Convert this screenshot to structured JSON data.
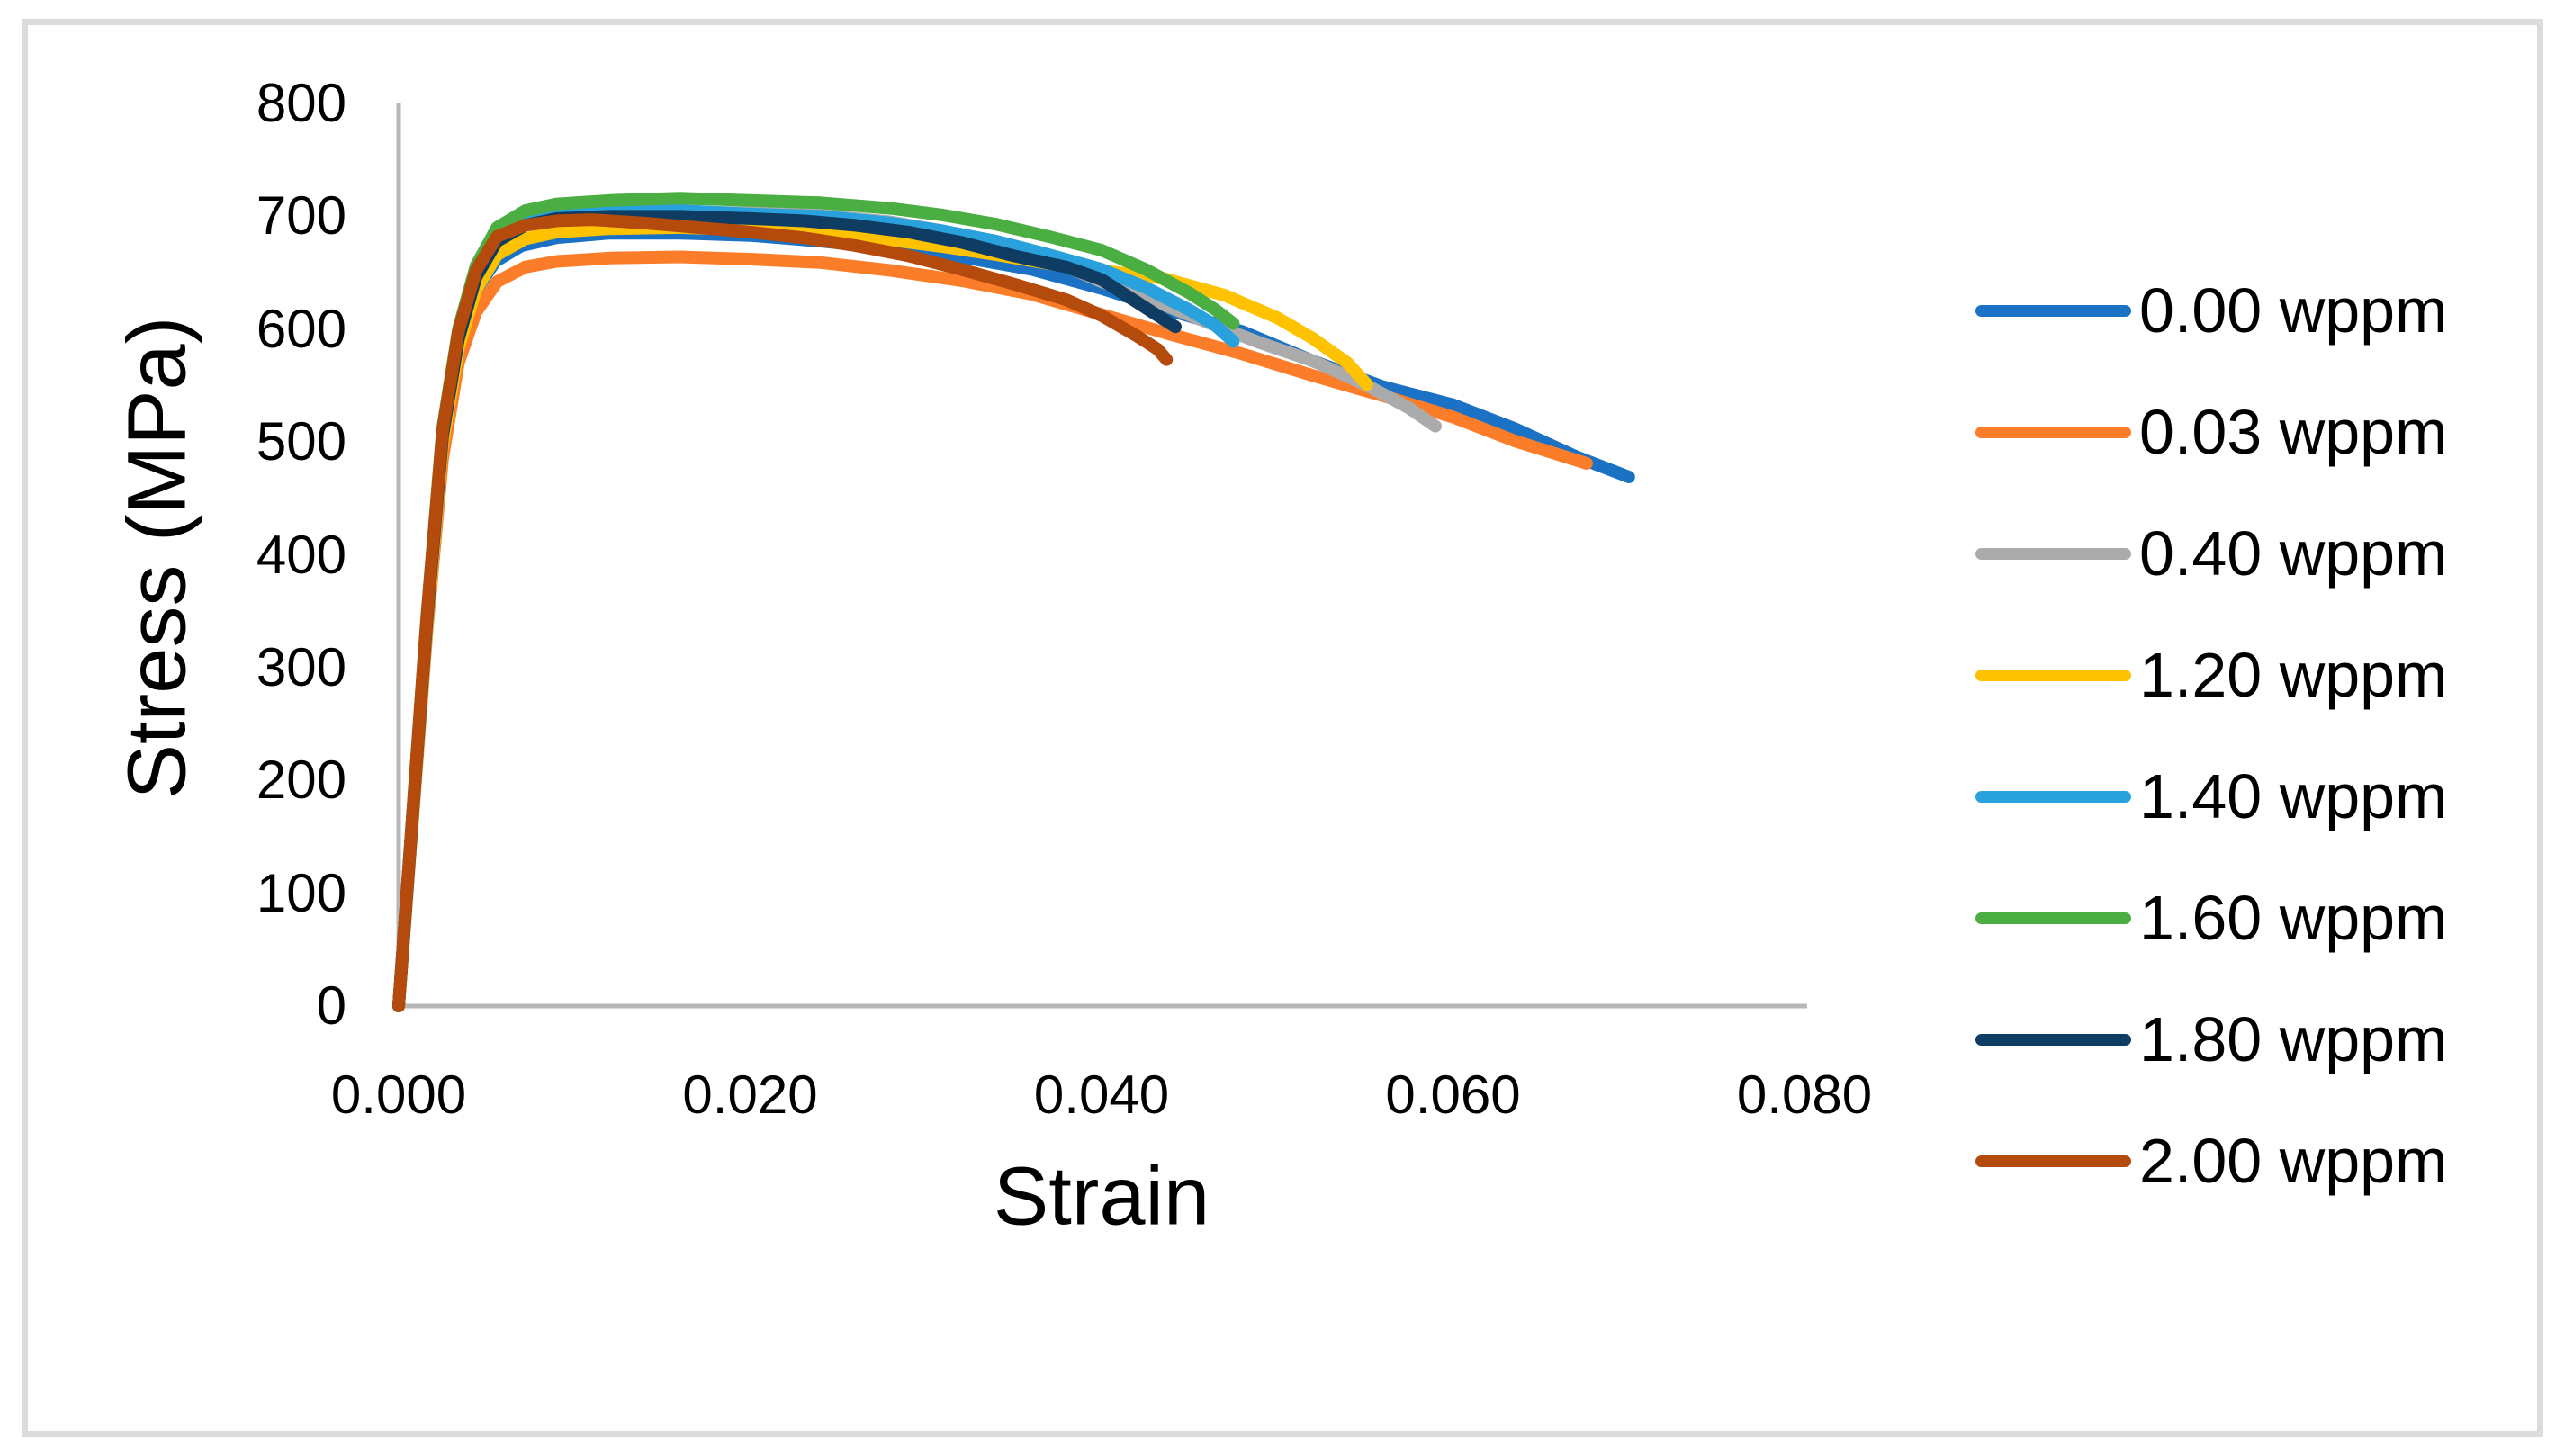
{
  "figure": {
    "background": "#FFFFFF",
    "border_color": "#DCDCDC"
  },
  "chart_data": {
    "type": "line",
    "title": "",
    "xlabel": "Strain",
    "ylabel": "Stress (MPa)",
    "xlim": [
      0,
      0.08
    ],
    "ylim": [
      0,
      800
    ],
    "grid": false,
    "legend_position": "right",
    "axis_line_color": "#B7B7B7",
    "x_ticks": {
      "values": [
        0,
        0.02,
        0.04,
        0.06,
        0.08
      ],
      "labels": [
        "0.000",
        "0.020",
        "0.040",
        "0.060",
        "0.080"
      ]
    },
    "y_ticks": {
      "values": [
        0,
        100,
        200,
        300,
        400,
        500,
        600,
        700,
        800
      ],
      "labels": [
        "0",
        "100",
        "200",
        "300",
        "400",
        "500",
        "600",
        "700",
        "800"
      ]
    },
    "series": [
      {
        "name": "0.00 wppm",
        "color": "#1B72C4",
        "points": [
          [
            0,
            0
          ],
          [
            0.0008,
            170
          ],
          [
            0.0016,
            340
          ],
          [
            0.0025,
            500
          ],
          [
            0.0033,
            580
          ],
          [
            0.0042,
            630
          ],
          [
            0.0055,
            660
          ],
          [
            0.007,
            674
          ],
          [
            0.009,
            681
          ],
          [
            0.012,
            685
          ],
          [
            0.016,
            685
          ],
          [
            0.02,
            683
          ],
          [
            0.024,
            678
          ],
          [
            0.028,
            672
          ],
          [
            0.032,
            664
          ],
          [
            0.036,
            653
          ],
          [
            0.04,
            636
          ],
          [
            0.044,
            616
          ],
          [
            0.048,
            598
          ],
          [
            0.052,
            572
          ],
          [
            0.056,
            549
          ],
          [
            0.06,
            533
          ],
          [
            0.0635,
            512
          ],
          [
            0.067,
            487
          ],
          [
            0.07,
            469
          ]
        ]
      },
      {
        "name": "0.03 wppm",
        "color": "#FB7D29",
        "points": [
          [
            0,
            0
          ],
          [
            0.0008,
            165
          ],
          [
            0.0016,
            330
          ],
          [
            0.0025,
            485
          ],
          [
            0.0034,
            570
          ],
          [
            0.0044,
            615
          ],
          [
            0.0056,
            642
          ],
          [
            0.0072,
            655
          ],
          [
            0.009,
            660
          ],
          [
            0.012,
            663
          ],
          [
            0.016,
            664
          ],
          [
            0.02,
            662
          ],
          [
            0.024,
            659
          ],
          [
            0.028,
            652
          ],
          [
            0.032,
            643
          ],
          [
            0.036,
            631
          ],
          [
            0.04,
            613
          ],
          [
            0.044,
            595
          ],
          [
            0.048,
            578
          ],
          [
            0.052,
            559
          ],
          [
            0.056,
            541
          ],
          [
            0.06,
            522
          ],
          [
            0.0635,
            501
          ],
          [
            0.0676,
            481
          ]
        ]
      },
      {
        "name": "0.40 wppm",
        "color": "#ABABAB",
        "points": [
          [
            0,
            0
          ],
          [
            0.0008,
            170
          ],
          [
            0.0016,
            340
          ],
          [
            0.0025,
            505
          ],
          [
            0.0034,
            590
          ],
          [
            0.0044,
            645
          ],
          [
            0.0056,
            678
          ],
          [
            0.0072,
            693
          ],
          [
            0.009,
            700
          ],
          [
            0.012,
            703
          ],
          [
            0.016,
            704
          ],
          [
            0.02,
            703
          ],
          [
            0.024,
            701
          ],
          [
            0.028,
            695
          ],
          [
            0.031,
            687
          ],
          [
            0.034,
            676
          ],
          [
            0.037,
            662
          ],
          [
            0.04,
            642
          ],
          [
            0.043,
            625
          ],
          [
            0.046,
            606
          ],
          [
            0.049,
            588
          ],
          [
            0.052,
            572
          ],
          [
            0.055,
            551
          ],
          [
            0.0575,
            530
          ],
          [
            0.059,
            514
          ]
        ]
      },
      {
        "name": "1.20 wppm",
        "color": "#FEC200",
        "points": [
          [
            0,
            0
          ],
          [
            0.0008,
            168
          ],
          [
            0.0016,
            335
          ],
          [
            0.0025,
            498
          ],
          [
            0.0034,
            583
          ],
          [
            0.0044,
            635
          ],
          [
            0.0056,
            666
          ],
          [
            0.0072,
            680
          ],
          [
            0.009,
            686
          ],
          [
            0.012,
            689
          ],
          [
            0.016,
            690
          ],
          [
            0.02,
            688
          ],
          [
            0.024,
            684
          ],
          [
            0.028,
            679
          ],
          [
            0.031,
            673
          ],
          [
            0.034,
            666
          ],
          [
            0.037,
            658
          ],
          [
            0.04,
            652
          ],
          [
            0.0435,
            645
          ],
          [
            0.047,
            630
          ],
          [
            0.05,
            610
          ],
          [
            0.052,
            592
          ],
          [
            0.054,
            570
          ],
          [
            0.0551,
            551
          ]
        ]
      },
      {
        "name": "1.40 wppm",
        "color": "#29A1DC",
        "points": [
          [
            0,
            0
          ],
          [
            0.0008,
            170
          ],
          [
            0.0016,
            340
          ],
          [
            0.0025,
            506
          ],
          [
            0.0034,
            592
          ],
          [
            0.0044,
            648
          ],
          [
            0.0056,
            680
          ],
          [
            0.0072,
            695
          ],
          [
            0.009,
            701
          ],
          [
            0.012,
            704
          ],
          [
            0.016,
            705
          ],
          [
            0.02,
            702
          ],
          [
            0.024,
            700
          ],
          [
            0.028,
            694
          ],
          [
            0.031,
            687
          ],
          [
            0.034,
            678
          ],
          [
            0.037,
            666
          ],
          [
            0.04,
            653
          ],
          [
            0.0425,
            637
          ],
          [
            0.045,
            617
          ],
          [
            0.0465,
            603
          ],
          [
            0.0475,
            589
          ]
        ]
      },
      {
        "name": "1.60 wppm",
        "color": "#4AAE42",
        "points": [
          [
            0,
            0
          ],
          [
            0.0008,
            172
          ],
          [
            0.0016,
            344
          ],
          [
            0.0025,
            512
          ],
          [
            0.0034,
            600
          ],
          [
            0.0044,
            656
          ],
          [
            0.0056,
            690
          ],
          [
            0.0072,
            705
          ],
          [
            0.009,
            711
          ],
          [
            0.012,
            714
          ],
          [
            0.016,
            716
          ],
          [
            0.02,
            714
          ],
          [
            0.024,
            712
          ],
          [
            0.028,
            707
          ],
          [
            0.031,
            701
          ],
          [
            0.034,
            693
          ],
          [
            0.037,
            682
          ],
          [
            0.04,
            670
          ],
          [
            0.0425,
            653
          ],
          [
            0.045,
            632
          ],
          [
            0.0465,
            617
          ],
          [
            0.0475,
            605
          ]
        ]
      },
      {
        "name": "1.80 wppm",
        "color": "#0E3C62",
        "points": [
          [
            0,
            0
          ],
          [
            0.0008,
            170
          ],
          [
            0.0016,
            340
          ],
          [
            0.0025,
            505
          ],
          [
            0.0034,
            591
          ],
          [
            0.0044,
            646
          ],
          [
            0.0056,
            678
          ],
          [
            0.0072,
            692
          ],
          [
            0.009,
            698
          ],
          [
            0.012,
            700
          ],
          [
            0.016,
            700
          ],
          [
            0.02,
            698
          ],
          [
            0.023,
            696
          ],
          [
            0.026,
            692
          ],
          [
            0.029,
            686
          ],
          [
            0.032,
            677
          ],
          [
            0.035,
            665
          ],
          [
            0.038,
            655
          ],
          [
            0.04,
            644
          ],
          [
            0.042,
            624
          ],
          [
            0.0435,
            609
          ],
          [
            0.0442,
            602
          ]
        ]
      },
      {
        "name": "2.00 wppm",
        "color": "#B44A0C",
        "points": [
          [
            0,
            0
          ],
          [
            0.0008,
            172
          ],
          [
            0.0016,
            344
          ],
          [
            0.0025,
            510
          ],
          [
            0.0034,
            598
          ],
          [
            0.0044,
            652
          ],
          [
            0.0056,
            682
          ],
          [
            0.0072,
            692
          ],
          [
            0.009,
            696
          ],
          [
            0.011,
            697
          ],
          [
            0.014,
            694
          ],
          [
            0.017,
            690
          ],
          [
            0.02,
            686
          ],
          [
            0.023,
            681
          ],
          [
            0.026,
            674
          ],
          [
            0.029,
            665
          ],
          [
            0.032,
            653
          ],
          [
            0.035,
            640
          ],
          [
            0.038,
            626
          ],
          [
            0.04,
            612
          ],
          [
            0.042,
            594
          ],
          [
            0.0432,
            582
          ],
          [
            0.0437,
            573
          ]
        ]
      }
    ]
  }
}
